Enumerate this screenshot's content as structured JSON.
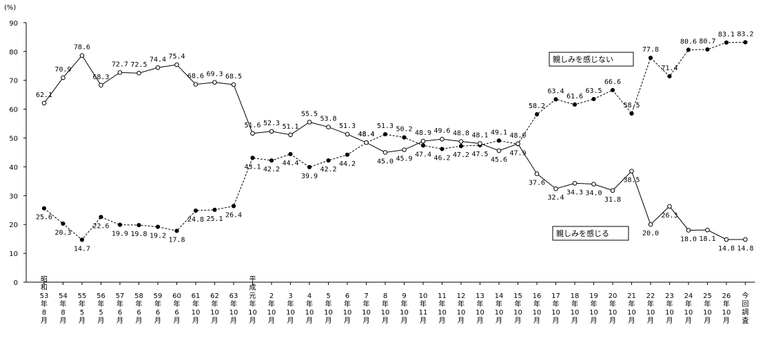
{
  "chart_data": {
    "type": "line",
    "unit_label": "(%)",
    "ylim": [
      0,
      90
    ],
    "yticks": [
      0,
      10,
      20,
      30,
      40,
      50,
      60,
      70,
      80,
      90
    ],
    "categories": [
      [
        "昭",
        "和",
        "53",
        "年",
        "8",
        "月"
      ],
      [
        "54",
        "年",
        "8",
        "月"
      ],
      [
        "55",
        "年",
        "5",
        "月"
      ],
      [
        "56",
        "年",
        "5",
        "月"
      ],
      [
        "57",
        "年",
        "6",
        "月"
      ],
      [
        "58",
        "年",
        "6",
        "月"
      ],
      [
        "59",
        "年",
        "6",
        "月"
      ],
      [
        "60",
        "年",
        "6",
        "月"
      ],
      [
        "61",
        "年",
        "10",
        "月"
      ],
      [
        "62",
        "年",
        "10",
        "月"
      ],
      [
        "63",
        "年",
        "10",
        "月"
      ],
      [
        "平",
        "成",
        "元",
        "年",
        "10",
        "月"
      ],
      [
        "2",
        "年",
        "10",
        "月"
      ],
      [
        "3",
        "年",
        "10",
        "月"
      ],
      [
        "4",
        "年",
        "10",
        "月"
      ],
      [
        "5",
        "年",
        "10",
        "月"
      ],
      [
        "6",
        "年",
        "10",
        "月"
      ],
      [
        "7",
        "年",
        "10",
        "月"
      ],
      [
        "8",
        "年",
        "10",
        "月"
      ],
      [
        "9",
        "年",
        "10",
        "月"
      ],
      [
        "10",
        "年",
        "11",
        "月"
      ],
      [
        "11",
        "年",
        "10",
        "月"
      ],
      [
        "12",
        "年",
        "10",
        "月"
      ],
      [
        "13",
        "年",
        "10",
        "月"
      ],
      [
        "14",
        "年",
        "10",
        "月"
      ],
      [
        "15",
        "年",
        "10",
        "月"
      ],
      [
        "16",
        "年",
        "10",
        "月"
      ],
      [
        "17",
        "年",
        "10",
        "月"
      ],
      [
        "18",
        "年",
        "10",
        "月"
      ],
      [
        "19",
        "年",
        "10",
        "月"
      ],
      [
        "20",
        "年",
        "10",
        "月"
      ],
      [
        "21",
        "年",
        "10",
        "月"
      ],
      [
        "22",
        "年",
        "10",
        "月"
      ],
      [
        "23",
        "年",
        "10",
        "月"
      ],
      [
        "24",
        "年",
        "10",
        "月"
      ],
      [
        "25",
        "年",
        "10",
        "月"
      ],
      [
        "26",
        "年",
        "10",
        "月"
      ],
      [
        "今",
        "回",
        "調",
        "査"
      ]
    ],
    "series": [
      {
        "name": "親しみを感じない",
        "style": "dashed",
        "marker": "filled",
        "values": [
          25.6,
          20.3,
          14.7,
          22.6,
          19.9,
          19.8,
          19.2,
          17.8,
          24.8,
          25.1,
          26.4,
          43.1,
          42.2,
          44.4,
          39.9,
          42.2,
          44.2,
          48.4,
          51.3,
          50.2,
          47.4,
          46.2,
          47.2,
          47.5,
          49.1,
          47.9,
          58.2,
          63.4,
          61.6,
          63.5,
          66.6,
          58.5,
          77.8,
          71.4,
          80.6,
          80.7,
          83.1,
          83.2
        ]
      },
      {
        "name": "親しみを感じる",
        "style": "solid",
        "marker": "open",
        "values": [
          62.1,
          70.9,
          78.6,
          68.3,
          72.7,
          72.5,
          74.4,
          75.4,
          68.6,
          69.3,
          68.5,
          51.6,
          52.3,
          51.1,
          55.5,
          53.8,
          51.3,
          48.4,
          45.0,
          45.9,
          48.9,
          49.6,
          48.8,
          48.1,
          45.6,
          48.0,
          37.6,
          32.4,
          34.3,
          34.0,
          31.8,
          38.5,
          20.0,
          26.3,
          18.0,
          18.1,
          14.8,
          14.8
        ]
      }
    ],
    "legend": {
      "not_feel": "親しみを感じない",
      "feel": "親しみを感じる"
    }
  }
}
